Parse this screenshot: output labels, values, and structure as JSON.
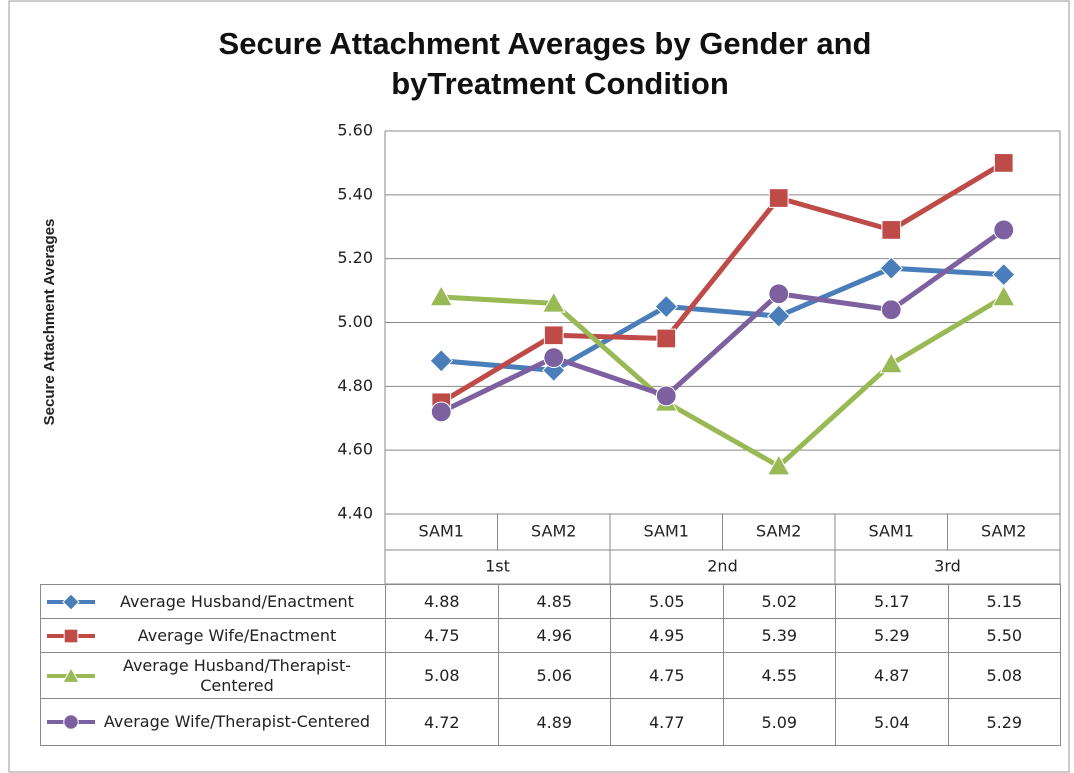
{
  "chart_data": {
    "type": "line",
    "title": [
      "Secure Attachment Averages by Gender and",
      "byTreatment Condition"
    ],
    "y_label": "Secure Attachment Averages",
    "categories": [
      "SAM1",
      "SAM2",
      "SAM1",
      "SAM2",
      "SAM1",
      "SAM2"
    ],
    "category_groups": [
      "1st",
      "2nd",
      "3rd"
    ],
    "ylim": [
      4.4,
      5.6
    ],
    "yticks": [
      {
        "value": 4.4,
        "label": "4.40"
      },
      {
        "value": 4.6,
        "label": "4.60"
      },
      {
        "value": 4.8,
        "label": "4.80"
      },
      {
        "value": 5.0,
        "label": "5.00"
      },
      {
        "value": 5.2,
        "label": "5.20"
      },
      {
        "value": 5.4,
        "label": "5.40"
      },
      {
        "value": 5.6,
        "label": "5.60"
      }
    ],
    "grid": true,
    "series": [
      {
        "name": "Average Husband/Enactment",
        "color": "#4a7ebb",
        "marker": "diamond",
        "values": [
          4.88,
          4.85,
          5.05,
          5.02,
          5.17,
          5.15
        ],
        "value_labels": [
          "4.88",
          "4.85",
          "5.05",
          "5.02",
          "5.17",
          "5.15"
        ]
      },
      {
        "name": "Average Wife/Enactment",
        "color": "#be4b48",
        "marker": "square",
        "values": [
          4.75,
          4.96,
          4.95,
          5.39,
          5.29,
          5.5
        ],
        "value_labels": [
          "4.75",
          "4.96",
          "4.95",
          "5.39",
          "5.29",
          "5.50"
        ]
      },
      {
        "name": "Average Husband/Therapist-Centered",
        "color": "#98b954",
        "marker": "triangle",
        "values": [
          5.08,
          5.06,
          4.75,
          4.55,
          4.87,
          5.08
        ],
        "value_labels": [
          "5.08",
          "5.06",
          "4.75",
          "4.55",
          "4.87",
          "5.08"
        ]
      },
      {
        "name": "Average Wife/Therapist-Centered",
        "color": "#7d60a0",
        "marker": "circle",
        "values": [
          4.72,
          4.89,
          4.77,
          5.09,
          5.04,
          5.29
        ],
        "value_labels": [
          "4.72",
          "4.89",
          "4.77",
          "5.09",
          "5.04",
          "5.29"
        ]
      }
    ]
  }
}
